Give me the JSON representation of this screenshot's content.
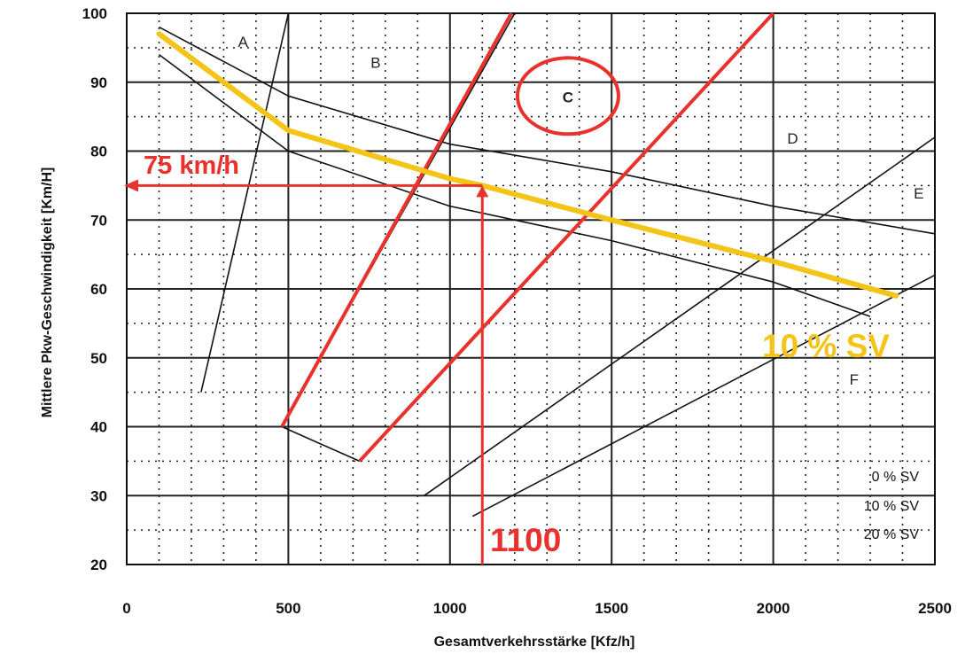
{
  "chart_data": {
    "type": "line",
    "xlabel": "Gesamtverkehrsstärke [Kfz/h]",
    "ylabel": "Mittlere Pkw-Geschwindigkeit [Km/H]",
    "xlim": [
      0,
      2500
    ],
    "ylim": [
      20,
      100
    ],
    "x_ticks": [
      "0",
      "500",
      "1000",
      "1500",
      "2000",
      "2500"
    ],
    "y_ticks": [
      "20",
      "30",
      "40",
      "50",
      "60",
      "70",
      "80",
      "90",
      "100"
    ],
    "grid": "dotted",
    "speed_curves": [
      {
        "label": "0 % SV",
        "points": [
          [
            100,
            98
          ],
          [
            500,
            88
          ],
          [
            1000,
            81
          ],
          [
            1500,
            77
          ],
          [
            2000,
            72
          ],
          [
            2500,
            68
          ]
        ]
      },
      {
        "label": "20 % SV",
        "points": [
          [
            100,
            94
          ],
          [
            500,
            80
          ],
          [
            1000,
            72
          ],
          [
            1500,
            67
          ],
          [
            2000,
            61
          ],
          [
            2300,
            56
          ]
        ]
      }
    ],
    "highlighted_curve": {
      "label": "10 % SV",
      "color": "#f4c418",
      "points": [
        [
          100,
          97
        ],
        [
          500,
          83
        ],
        [
          1000,
          76
        ],
        [
          1100,
          75
        ],
        [
          1500,
          70
        ],
        [
          2000,
          64
        ],
        [
          2380,
          59
        ]
      ]
    },
    "boundary_lines": [
      {
        "points": [
          [
            230,
            45
          ],
          [
            500,
            100
          ]
        ]
      },
      {
        "points": [
          [
            480,
            40
          ],
          [
            1200,
            100
          ]
        ]
      },
      {
        "points": [
          [
            480,
            40
          ],
          [
            720,
            35
          ]
        ]
      },
      {
        "points": [
          [
            920,
            30
          ],
          [
            2500,
            82
          ]
        ]
      },
      {
        "points": [
          [
            1070,
            27
          ],
          [
            2500,
            62
          ]
        ]
      }
    ],
    "red_lines": [
      {
        "points": [
          [
            480,
            40
          ],
          [
            1190,
            100
          ]
        ]
      },
      {
        "points": [
          [
            720,
            35
          ],
          [
            2000,
            100
          ]
        ]
      }
    ],
    "region_labels": [
      "A",
      "B",
      "C",
      "D",
      "E",
      "F"
    ],
    "legend_entries": [
      "0 % SV",
      "10 % SV",
      "20 % SV"
    ],
    "annotations": {
      "speed_label": "75 km/h",
      "speed_value": 75,
      "volume_label": "1100",
      "volume_value": 1100,
      "curve_label": "10 % SV",
      "highlight_color": "#e8322d",
      "curve_color": "#f4c418"
    }
  }
}
